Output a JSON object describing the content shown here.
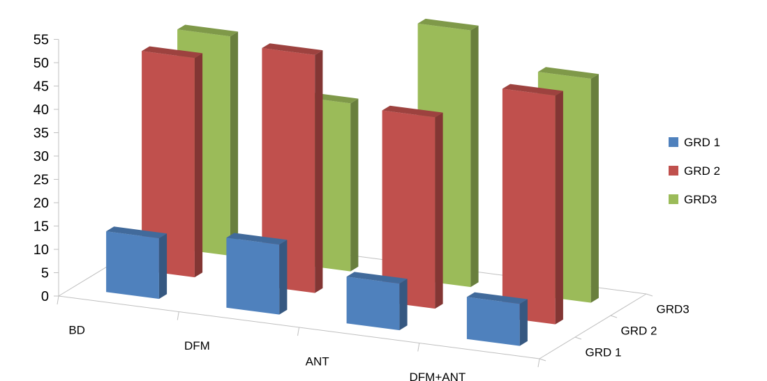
{
  "chart_data": {
    "type": "bar",
    "subtype": "3d-column",
    "title": "",
    "xlabel": "",
    "ylabel": "",
    "ylim": [
      0,
      55
    ],
    "yticks": [
      0,
      5,
      10,
      15,
      20,
      25,
      30,
      35,
      40,
      45,
      50,
      55
    ],
    "grid": false,
    "legend_position": "right",
    "categories": [
      "BD",
      "DFM",
      "ANT",
      "DFM+ANT"
    ],
    "series": [
      {
        "name": "GRD 1",
        "values": [
          13,
          15,
          10,
          9
        ],
        "color": "#4F81BD"
      },
      {
        "name": "GRD 2",
        "values": [
          47,
          51,
          41,
          49
        ],
        "color": "#C0504D"
      },
      {
        "name": "GRD3",
        "values": [
          47,
          36,
          55,
          48
        ],
        "color": "#9BBB59"
      }
    ]
  }
}
